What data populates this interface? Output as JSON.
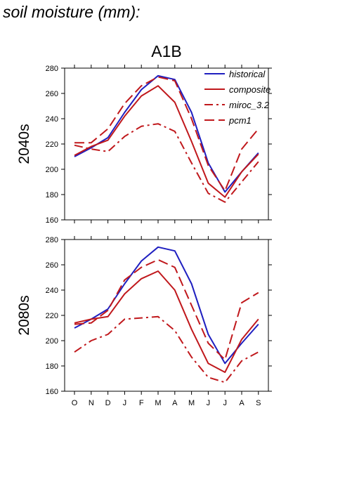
{
  "page_title": "soil moisture (mm):",
  "scenario": "A1B",
  "row_labels": [
    "2040s",
    "2080s"
  ],
  "colors": {
    "historical": "#1f1fc0",
    "composite": "#c0181c",
    "miroc_3.2": "#c0181c",
    "pcm1": "#c0181c"
  },
  "chart_data": [
    {
      "type": "line",
      "title": "A1B",
      "row_label": "2040s",
      "x": [
        "O",
        "N",
        "D",
        "J",
        "F",
        "M",
        "A",
        "M",
        "J",
        "J",
        "A",
        "S"
      ],
      "ylim": [
        160,
        280
      ],
      "yticks": [
        160,
        180,
        200,
        220,
        240,
        260,
        280
      ],
      "legend_position": "top-right",
      "series": [
        {
          "name": "historical",
          "style": "solid",
          "color": "#1f1fc0",
          "values": [
            210,
            217,
            225,
            245,
            263,
            274,
            271,
            245,
            205,
            182,
            198,
            213
          ]
        },
        {
          "name": "composite",
          "style": "solid",
          "color": "#c0181c",
          "values": [
            211,
            218,
            223,
            242,
            258,
            266,
            253,
            222,
            189,
            178,
            198,
            212
          ]
        },
        {
          "name": "miroc_3.2",
          "style": "dashdot",
          "color": "#c0181c",
          "values": [
            219,
            216,
            214,
            226,
            234,
            236,
            230,
            205,
            181,
            174,
            190,
            206
          ]
        },
        {
          "name": "pcm1",
          "style": "dashed",
          "color": "#c0181c",
          "values": [
            221,
            221,
            232,
            252,
            266,
            273,
            270,
            240,
            203,
            183,
            216,
            232
          ]
        }
      ]
    },
    {
      "type": "line",
      "row_label": "2080s",
      "x": [
        "O",
        "N",
        "D",
        "J",
        "F",
        "M",
        "A",
        "M",
        "J",
        "J",
        "A",
        "S"
      ],
      "ylim": [
        160,
        280
      ],
      "yticks": [
        160,
        180,
        200,
        220,
        240,
        260,
        280
      ],
      "series": [
        {
          "name": "historical",
          "style": "solid",
          "color": "#1f1fc0",
          "values": [
            210,
            217,
            225,
            245,
            263,
            274,
            271,
            245,
            205,
            182,
            198,
            213
          ]
        },
        {
          "name": "composite",
          "style": "solid",
          "color": "#c0181c",
          "values": [
            214,
            217,
            219,
            237,
            249,
            255,
            240,
            209,
            182,
            175,
            201,
            217
          ]
        },
        {
          "name": "miroc_3.2",
          "style": "dashdot",
          "color": "#c0181c",
          "values": [
            191,
            200,
            205,
            217,
            218,
            219,
            208,
            187,
            171,
            167,
            184,
            191
          ]
        },
        {
          "name": "pcm1",
          "style": "dashed",
          "color": "#c0181c",
          "values": [
            213,
            214,
            224,
            248,
            258,
            264,
            258,
            228,
            198,
            185,
            230,
            238
          ]
        }
      ]
    }
  ]
}
